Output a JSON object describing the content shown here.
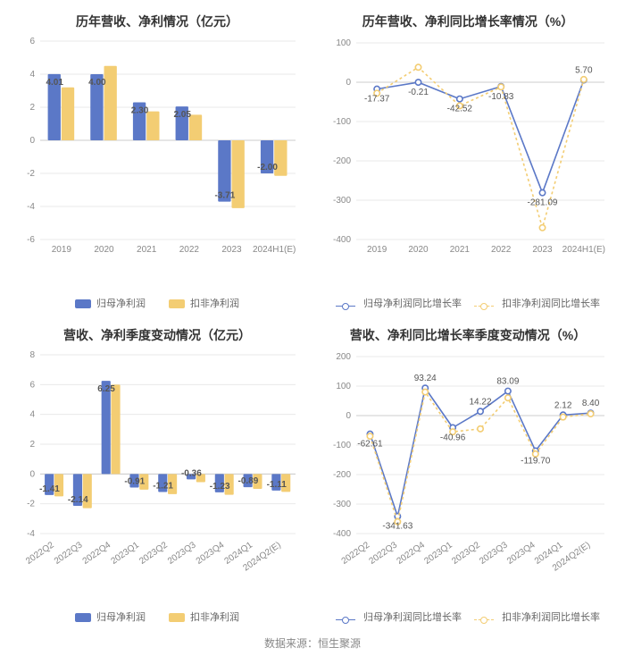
{
  "colors": {
    "blue": "#5b78c7",
    "yellow": "#f3cd73",
    "grid": "#e9e9e9",
    "axis": "#cccccc",
    "text_axis": "#888888",
    "text_title": "#333333",
    "text_value": "#555555",
    "bg": "#ffffff"
  },
  "top_left": {
    "type": "bar",
    "title": "历年营收、净利情况（亿元）",
    "categories": [
      "2019",
      "2020",
      "2021",
      "2022",
      "2023",
      "2024H1(E)"
    ],
    "series": [
      {
        "name": "归母净利润",
        "color_key": "blue",
        "values": [
          4.01,
          4.0,
          2.3,
          2.05,
          -3.71,
          -2.0
        ]
      },
      {
        "name": "扣非净利润",
        "color_key": "yellow",
        "values": [
          3.2,
          4.5,
          1.75,
          1.55,
          -4.1,
          -2.15
        ]
      }
    ],
    "value_labels": [
      "4.01",
      "4.00",
      "2.30",
      "2.05",
      "-3.71",
      "-2.00"
    ],
    "ylim": [
      -6,
      6
    ],
    "ytick_step": 2,
    "bar_width": 0.32,
    "label_fontsize": 10,
    "title_fontsize": 14
  },
  "top_right": {
    "type": "line",
    "title": "历年营收、净利同比增长率情况（%）",
    "categories": [
      "2019",
      "2020",
      "2021",
      "2022",
      "2023",
      "2024H1(E)"
    ],
    "series": [
      {
        "name": "归母净利润同比增长率",
        "color_key": "blue",
        "values": [
          -17.37,
          -0.21,
          -42.52,
          -10.83,
          -281.09,
          5.7
        ],
        "marker": "circle",
        "dash": "none"
      },
      {
        "name": "扣非净利润同比增长率",
        "color_key": "yellow",
        "values": [
          -28,
          38,
          -60,
          -12,
          -370,
          7
        ],
        "marker": "circle",
        "dash": "3,3"
      }
    ],
    "value_labels": [
      "-17.37",
      "-0.21",
      "-42.52",
      "-10.83",
      "-281.09",
      "5.70"
    ],
    "ylim": [
      -400,
      100
    ],
    "yticks": [
      -400,
      -300,
      -200,
      -100,
      0,
      100
    ],
    "title_fontsize": 14,
    "label_fontsize": 10
  },
  "bottom_left": {
    "type": "bar",
    "title": "营收、净利季度变动情况（亿元）",
    "categories": [
      "2022Q2",
      "2022Q3",
      "2022Q4",
      "2023Q1",
      "2023Q2",
      "2023Q3",
      "2023Q4",
      "2024Q1",
      "2024Q2(E)"
    ],
    "series": [
      {
        "name": "归母净利润",
        "color_key": "blue",
        "values": [
          -1.41,
          -2.14,
          6.25,
          -0.91,
          -1.21,
          -0.36,
          -1.23,
          -0.89,
          -1.11
        ]
      },
      {
        "name": "扣非净利润",
        "color_key": "yellow",
        "values": [
          -1.5,
          -2.3,
          6.0,
          -1.05,
          -1.35,
          -0.55,
          -1.4,
          -1.0,
          -1.2
        ]
      }
    ],
    "value_labels": [
      "-1.41",
      "-2.14",
      "6.25",
      "-0.91",
      "-1.21",
      "-0.36",
      "-1.23",
      "-0.89",
      "-1.11"
    ],
    "ylim": [
      -4,
      8
    ],
    "ytick_step": 2,
    "bar_width": 0.34,
    "x_label_rotation": -35,
    "title_fontsize": 14,
    "label_fontsize": 10
  },
  "bottom_right": {
    "type": "line",
    "title": "营收、净利同比增长率季度变动情况（%）",
    "categories": [
      "2022Q2",
      "2022Q3",
      "2022Q4",
      "2023Q1",
      "2023Q2",
      "2023Q3",
      "2023Q4",
      "2024Q1",
      "2024Q2(E)"
    ],
    "series": [
      {
        "name": "归母净利润同比增长率",
        "color_key": "blue",
        "values": [
          -62.61,
          -341.63,
          93.24,
          -40.96,
          14.22,
          83.09,
          -119.7,
          2.12,
          8.4
        ],
        "marker": "circle",
        "dash": "none"
      },
      {
        "name": "扣非净利润同比增长率",
        "color_key": "yellow",
        "values": [
          -70,
          -360,
          80,
          -55,
          -45,
          60,
          -130,
          -5,
          6
        ],
        "marker": "circle",
        "dash": "3,3"
      }
    ],
    "value_labels": [
      "-62.61",
      "-341.63",
      "93.24",
      "-40.96",
      "14.22",
      "83.09",
      "-119.70",
      "2.12",
      "8.40"
    ],
    "ylim": [
      -400,
      200
    ],
    "yticks": [
      -400,
      -300,
      -200,
      -100,
      0,
      100,
      200
    ],
    "x_label_rotation": -35,
    "title_fontsize": 14,
    "label_fontsize": 10
  },
  "legend_bar": [
    "归母净利润",
    "扣非净利润"
  ],
  "legend_line": [
    "归母净利润同比增长率",
    "扣非净利润同比增长率"
  ],
  "source_label": "数据来源：恒生聚源"
}
